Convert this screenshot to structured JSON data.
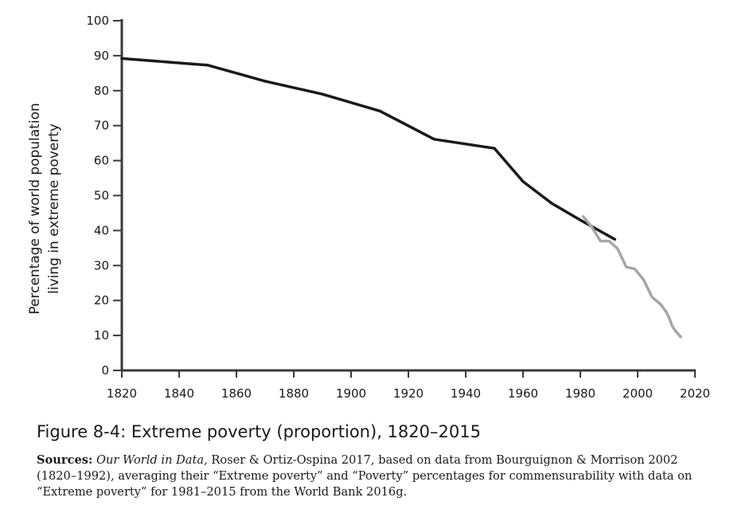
{
  "chart_data": {
    "type": "line",
    "title": "Figure 8-4: Extreme poverty (proportion), 1820–2015",
    "xlabel": "",
    "ylabel": [
      "Percentage of world population",
      "living in extreme poverty"
    ],
    "xlim": [
      1820,
      2020
    ],
    "ylim": [
      0,
      100
    ],
    "x_ticks": [
      1820,
      1840,
      1860,
      1880,
      1900,
      1920,
      1940,
      1960,
      1980,
      2000,
      2020
    ],
    "y_ticks": [
      0,
      10,
      20,
      30,
      40,
      50,
      60,
      70,
      80,
      90,
      100
    ],
    "grid": false,
    "legend": "none",
    "series": [
      {
        "name": "Bourguignon & Morrison 2002 (1820–1992)",
        "color": "#1a1a1a",
        "x": [
          1820,
          1850,
          1870,
          1890,
          1910,
          1929,
          1950,
          1960,
          1970,
          1980,
          1992
        ],
        "values": [
          89.2,
          87.3,
          82.7,
          79.0,
          74.2,
          66.1,
          63.5,
          54.0,
          47.8,
          43.0,
          37.5
        ]
      },
      {
        "name": "World Bank 2016g (1981–2015)",
        "color": "#a6a6a6",
        "x": [
          1981,
          1984,
          1987,
          1990,
          1993,
          1996,
          1999,
          2002,
          2005,
          2008,
          2010,
          2011,
          2012,
          2013,
          2015
        ],
        "values": [
          44.0,
          41.0,
          37.0,
          37.0,
          34.8,
          29.6,
          29.0,
          26.0,
          21.0,
          18.9,
          16.7,
          15.0,
          12.8,
          11.5,
          9.6
        ]
      }
    ]
  },
  "caption": "Figure 8-4: Extreme poverty (proportion), 1820–2015",
  "sources": {
    "label": "Sources:",
    "italic": "Our World in Data,",
    "text": " Roser & Ortiz-Ospina 2017, based on data from Bourguignon & Morrison 2002 (1820–1992), averaging their “Extreme poverty” and “Poverty” percentages for commensurability with data on “Extreme poverty” for 1981–2015 from the World Bank 2016g."
  }
}
